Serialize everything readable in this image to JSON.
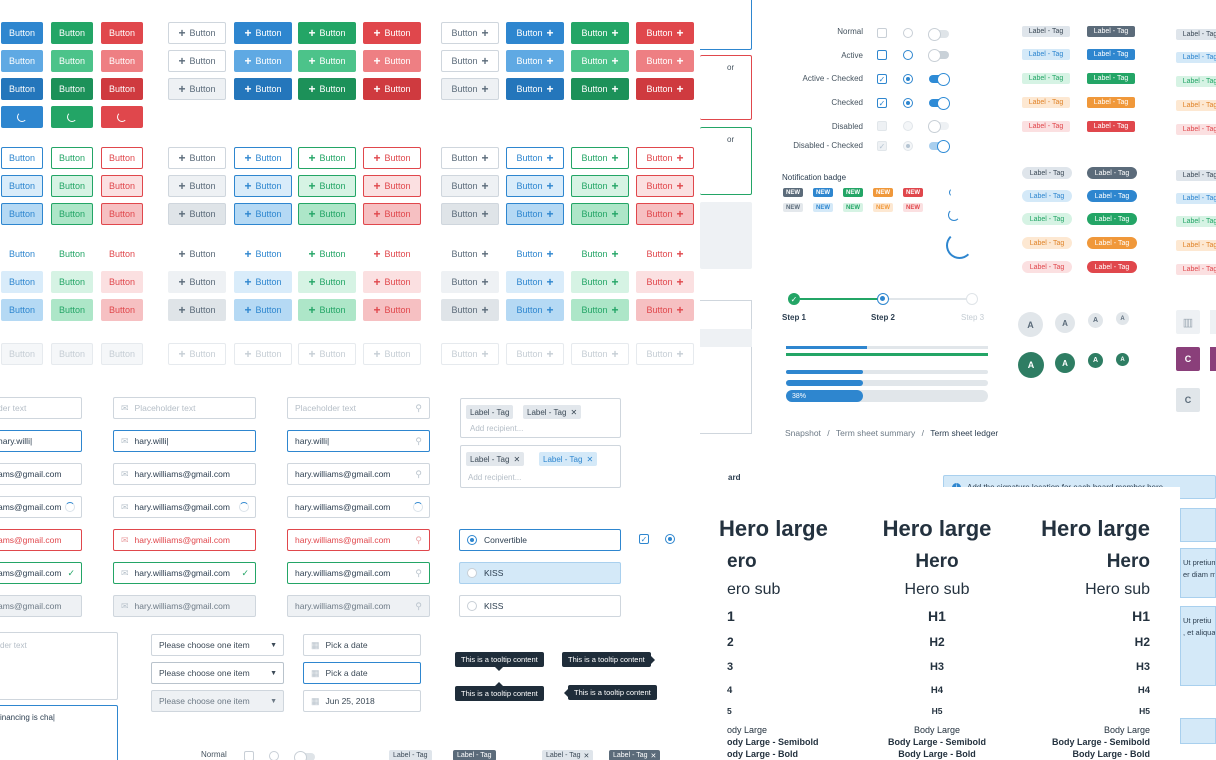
{
  "buttons": {
    "label": "Button"
  },
  "colors": {
    "blue": "#2e86cf",
    "green": "#23a566",
    "red": "#e0474c",
    "grey": "#eef1f4"
  },
  "inputs": {
    "placeholder": "Placeholder text",
    "typing": "hary.willi|",
    "email": "hary.williams@gmail.com",
    "placeholder_cut": "der text",
    "email_cut": "ams@gmail.com",
    "textarea_placeholder": "der text",
    "textarea_value": "inancing is cha|"
  },
  "tag_input": {
    "tag": "Label - Tag",
    "placeholder": "Add recipient..."
  },
  "options": {
    "convertible": "Convertible",
    "kiss1": "KISS",
    "kiss2": "KISS"
  },
  "selects": {
    "placeholder": "Please choose one item"
  },
  "dates": {
    "pick": "Pick a date",
    "value": "Jun 25, 2018"
  },
  "tooltips": {
    "text": "This is a tooltip content"
  },
  "states": {
    "normal": "Normal",
    "active": "Active",
    "active_checked": "Active - Checked",
    "checked": "Checked",
    "disabled": "Disabled",
    "disabled_checked": "Disabled - Checked"
  },
  "notification": {
    "title": "Notification badge",
    "badge": "NEW"
  },
  "tags": {
    "label": "Label - Tag"
  },
  "stepper": {
    "step1": "Step 1",
    "step2": "Step 2",
    "step3": "Step 3"
  },
  "progress": {
    "value": "38%",
    "fraction": 0.38
  },
  "breadcrumb": {
    "item1": "Snapshot",
    "item2": "Term sheet summary",
    "item3": "Term sheet ledger"
  },
  "avatar": {
    "letter": "A",
    "letter_c": "C"
  },
  "side_fragments": {
    "or1": "or",
    "or2": "or",
    "board": "ard"
  },
  "alert": {
    "text": "Add the signature location for each board member here"
  },
  "side_text": {
    "p1a": "Ut pretium",
    "p1b": "er diam m",
    "p2a": "Ut pretiu",
    "p2b": ", et aliqua"
  },
  "typography": {
    "hero_large": "Hero large",
    "hero": "Hero",
    "hero_sub": "Hero sub",
    "hero_cut": "ero",
    "hero_sub_cut": "ero sub",
    "h1": "H1",
    "h2": "H2",
    "h3": "H3",
    "h4": "H4",
    "h5": "H5",
    "h1_cut": "1",
    "h2_cut": "2",
    "h3_cut": "3",
    "h4_cut": "4",
    "h5_cut": "5",
    "body_large": "Body Large",
    "body_large_semibold": "Body Large - Semibold",
    "body_large_bold": "Body Large - Bold",
    "body_large_cut": "ody Large",
    "body_large_semibold_cut": "ody Large - Semibold",
    "body_large_bold_cut": "ody Large - Bold"
  }
}
